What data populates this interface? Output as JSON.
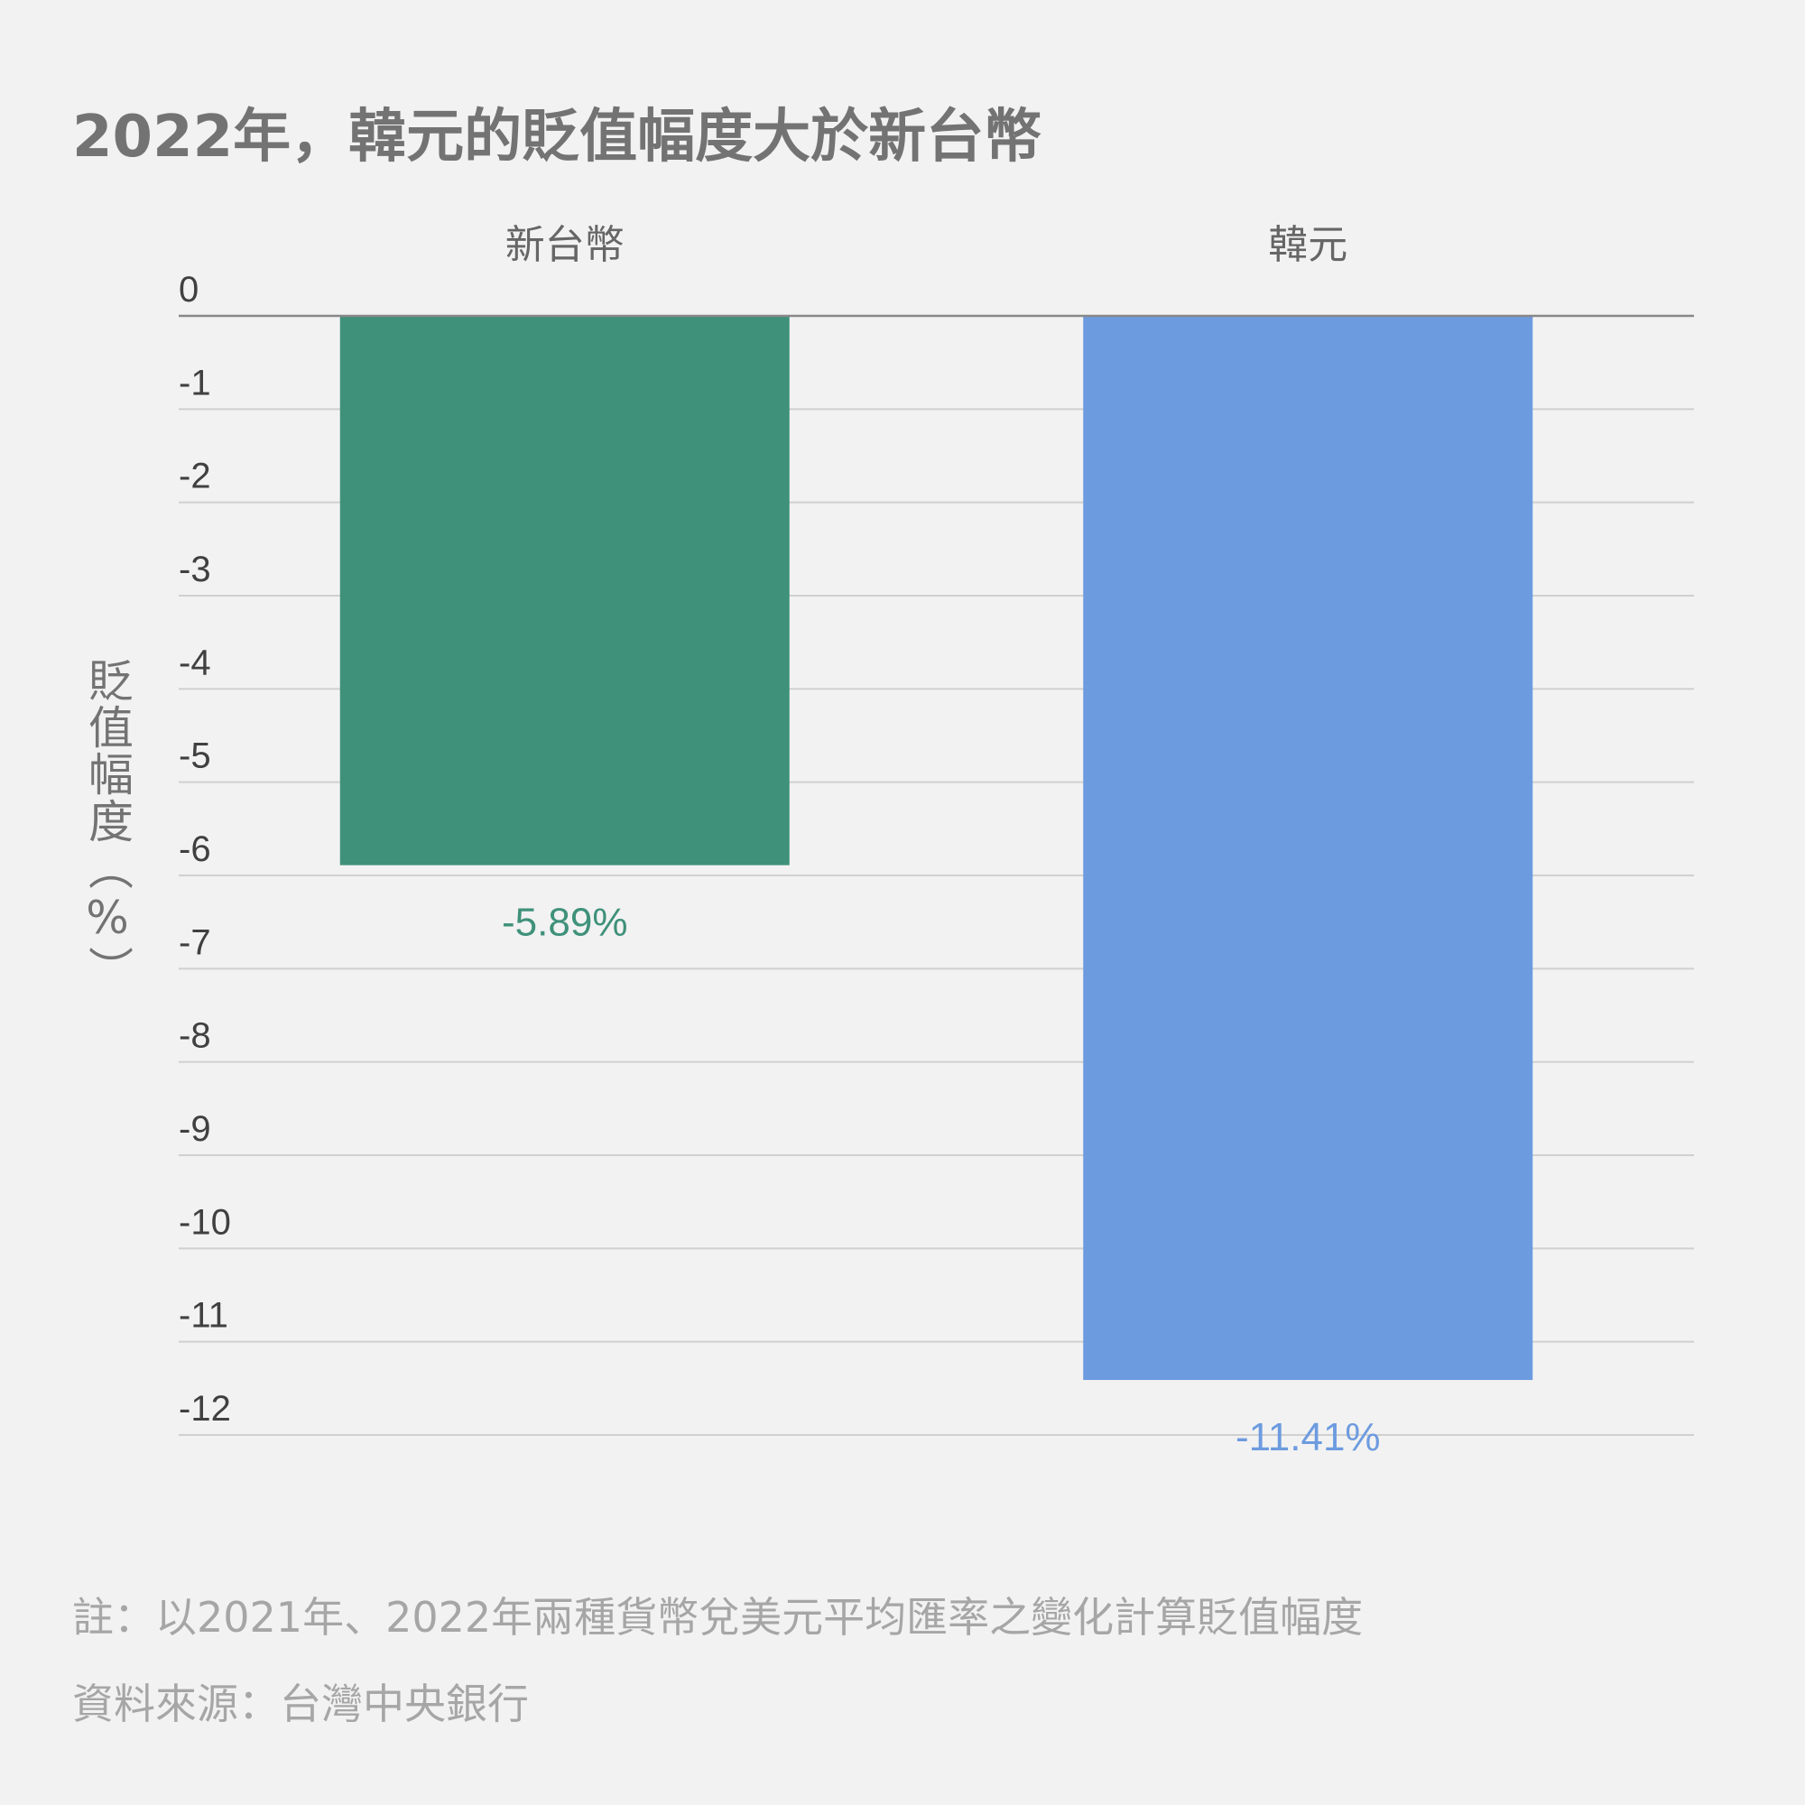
{
  "title": "2022年，韓元的貶值幅度大於新台幣",
  "note": "註：以2021年、2022年兩種貨幣兌美元平均匯率之變化計算貶值幅度",
  "source": "資料來源：台灣中央銀行",
  "colors": {
    "新台幣": "#3f917a",
    "韓元": "#6d9bdf",
    "grid": "#d0d0d0",
    "zero_line": "#888888"
  },
  "chart_data": {
    "type": "bar",
    "title": "2022年，韓元的貶值幅度大於新台幣",
    "ylabel": "貶值幅度（%）",
    "xlabel": "",
    "categories": [
      "新台幣",
      "韓元"
    ],
    "values": [
      -5.89,
      -11.41
    ],
    "data_labels": [
      "-5.89%",
      "-11.41%"
    ],
    "ylim": [
      -12,
      0
    ],
    "yticks": [
      0,
      -1,
      -2,
      -3,
      -4,
      -5,
      -6,
      -7,
      -8,
      -9,
      -10,
      -11,
      -12
    ],
    "grid": true,
    "legend": "none",
    "category_axis_position": "top"
  }
}
